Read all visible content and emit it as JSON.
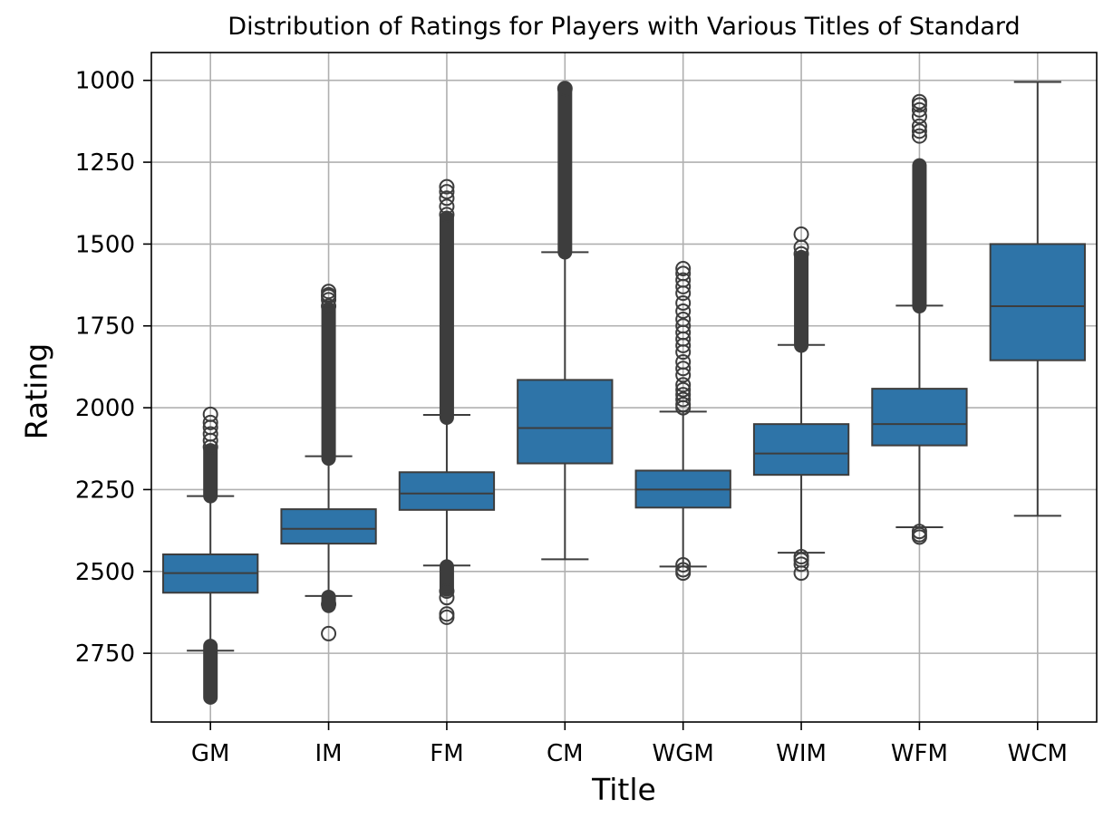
{
  "chart_data": {
    "type": "box",
    "title": "Distribution of Ratings for Players with Various Titles of Standard",
    "xlabel": "Title",
    "ylabel": "Rating",
    "y_inverted": true,
    "ylim": [
      2960,
      915
    ],
    "yticks": [
      1000,
      1250,
      1500,
      1750,
      2000,
      2250,
      2500,
      2750
    ],
    "grid": true,
    "box_color": "#2e74a8",
    "line_color": "#3d3d3d",
    "categories": [
      "GM",
      "IM",
      "FM",
      "CM",
      "WGM",
      "WIM",
      "WFM",
      "WCM"
    ],
    "boxes": [
      {
        "title": "GM",
        "whisker_low": 2270,
        "q1": 2448,
        "median": 2505,
        "q3": 2565,
        "whisker_high": 2742,
        "outliers_low": [
          2020,
          2045,
          2060,
          2080,
          2100,
          2120
        ],
        "outlier_band_low": [
          2130,
          2270
        ],
        "outliers_high": [],
        "outlier_band_high": [
          2728,
          2885
        ]
      },
      {
        "title": "IM",
        "whisker_low": 2148,
        "q1": 2310,
        "median": 2370,
        "q3": 2415,
        "whisker_high": 2575,
        "outliers_low": [
          1645,
          1655,
          1660,
          1670,
          1690
        ],
        "outlier_band_low": [
          1700,
          2155
        ],
        "outliers_high": [
          2600,
          2690
        ],
        "outlier_band_high": [
          2578,
          2605
        ]
      },
      {
        "title": "FM",
        "whisker_low": 2022,
        "q1": 2197,
        "median": 2262,
        "q3": 2312,
        "whisker_high": 2482,
        "outliers_low": [
          1325,
          1340,
          1360,
          1385,
          1410
        ],
        "outlier_band_low": [
          1420,
          2030
        ],
        "outliers_high": [
          2560,
          2580,
          2630,
          2640
        ],
        "outlier_band_high": [
          2485,
          2555
        ]
      },
      {
        "title": "CM",
        "whisker_low": 1525,
        "q1": 1915,
        "median": 2062,
        "q3": 2170,
        "whisker_high": 2463,
        "outliers_low": [
          1025
        ],
        "outlier_band_low": [
          1025,
          1525
        ],
        "outliers_high": [],
        "outlier_band_high": null
      },
      {
        "title": "WGM",
        "whisker_low": 2012,
        "q1": 2192,
        "median": 2250,
        "q3": 2305,
        "whisker_high": 2485,
        "outliers_low": [
          1575,
          1590,
          1610,
          1630,
          1650,
          1680,
          1705,
          1730,
          1750,
          1770,
          1790,
          1810,
          1830,
          1860,
          1880,
          1900,
          1930,
          1945,
          1960,
          1975,
          1990,
          2000
        ],
        "outlier_band_low": null,
        "outliers_high": [
          2480,
          2495,
          2505
        ],
        "outlier_band_high": null
      },
      {
        "title": "WIM",
        "whisker_low": 1808,
        "q1": 2050,
        "median": 2140,
        "q3": 2205,
        "whisker_high": 2443,
        "outliers_low": [
          1470,
          1510,
          1530
        ],
        "outlier_band_low": [
          1540,
          1810
        ],
        "outliers_high": [
          2455,
          2465,
          2478,
          2505
        ],
        "outlier_band_high": null
      },
      {
        "title": "WFM",
        "whisker_low": 1688,
        "q1": 1942,
        "median": 2050,
        "q3": 2115,
        "whisker_high": 2365,
        "outliers_low": [
          1065,
          1075,
          1090,
          1110,
          1140,
          1155,
          1170
        ],
        "outlier_band_low": [
          1260,
          1690
        ],
        "outliers_high": [
          2378,
          2388,
          2395
        ],
        "outlier_band_high": null
      },
      {
        "title": "WCM",
        "whisker_low": 1005,
        "q1": 1500,
        "median": 1690,
        "q3": 1855,
        "whisker_high": 2330,
        "outliers_low": [],
        "outlier_band_low": null,
        "outliers_high": [],
        "outlier_band_high": null
      }
    ]
  }
}
